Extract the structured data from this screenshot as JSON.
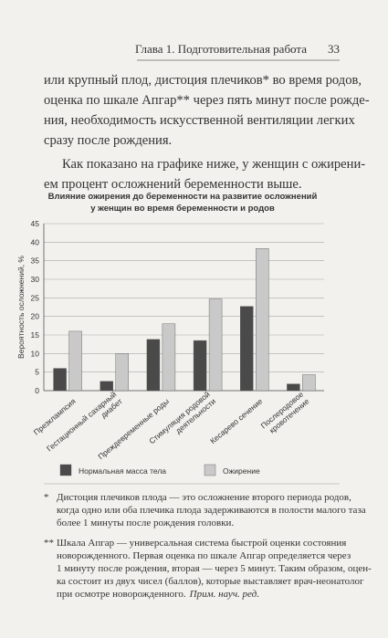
{
  "header": {
    "chapter": "Глава 1. Подготовительная работа",
    "page_number": "33"
  },
  "paragraphs": [
    [
      "или крупный плод, дистоция плечиков* во время родов,",
      "оценка по шкале Апгар** через пять минут после рожде-",
      "ния, необходимость искусственной вентиляции легких",
      "сразу после рождения."
    ],
    [
      "Как показано на графике ниже, у женщин с ожирени-",
      "ем процент осложнений беременности выше."
    ]
  ],
  "chart_data": {
    "type": "bar",
    "title": [
      "Влияние ожирения до беременности на развитие осложнений",
      "у женщин во время беременности и родов"
    ],
    "y_label": "Вероятность осложнений, %",
    "categories": [
      "Презклампсия",
      "Гестационный сахарный диабет",
      "Преждевременные роды",
      "Стимуляция родовой деятельности",
      "Кесарево сечение",
      "Послеродовое кровотечение"
    ],
    "series": [
      {
        "name": "Нормальная масса тела",
        "color": "#4a4a4a",
        "values": [
          6,
          2.5,
          13.8,
          13.5,
          22.7,
          1.8
        ]
      },
      {
        "name": "Ожирение",
        "color": "#c9c9c9",
        "values": [
          16,
          10,
          18,
          24.7,
          38.3,
          4.3
        ]
      }
    ],
    "ylim": [
      0,
      45
    ],
    "yticks": [
      0,
      5,
      10,
      15,
      20,
      25,
      30,
      35,
      40,
      45
    ],
    "grid": true,
    "legend": "bottom"
  },
  "footnotes": [
    {
      "mark": "*",
      "lines": [
        "Дистоция плечиков плода — это осложнение второго периода родов,",
        "когда одно или оба плечика плода задерживаются в полости малого таза",
        "более 1 минуты после рождения головки."
      ]
    },
    {
      "mark": "**",
      "lines": [
        "Шкала Апгар — универсальная система быстрой оценки состояния",
        "новорожденного. Первая оценка по шкале Апгар определяется через",
        "1 минуту после рождения, вторая — через 5 минут. Таким образом, оцен-",
        "ка состоит из двух чисел (баллов), которые выставляет врач-неонатолог",
        "при осмотре новорожденного."
      ],
      "editor_note": "Прим. науч. ред."
    }
  ]
}
